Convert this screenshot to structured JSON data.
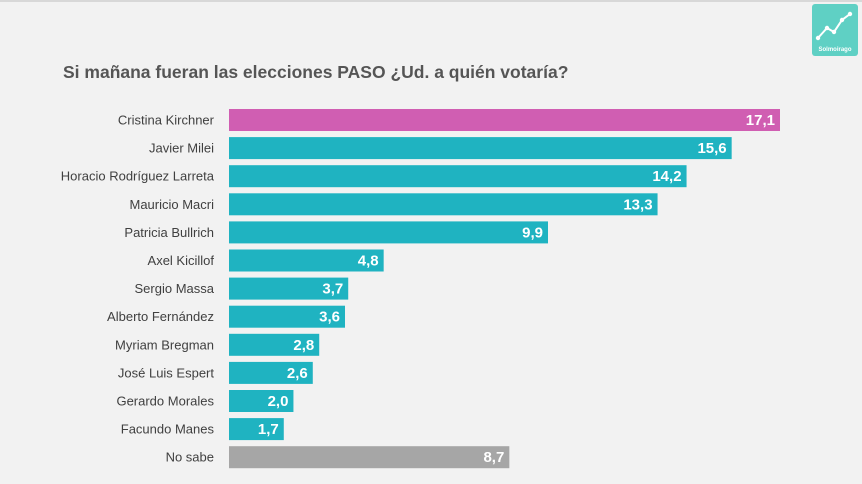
{
  "brand": {
    "logo_text": "Solmoirago",
    "logo_color": "#5fd0c4"
  },
  "chart_data": {
    "type": "bar",
    "orientation": "horizontal",
    "title": "Si mañana fueran las elecciones PASO ¿Ud. a quién votaría?",
    "categories": [
      "Cristina Kirchner",
      "Javier Milei",
      "Horacio Rodríguez Larreta",
      "Mauricio Macri",
      "Patricia Bullrich",
      "Axel Kicillof",
      "Sergio Massa",
      "Alberto Fernández",
      "Myriam Bregman",
      "José Luis Espert",
      "Gerardo Morales",
      "Facundo Manes",
      "No sabe"
    ],
    "values": [
      17.1,
      15.6,
      14.2,
      13.3,
      9.9,
      4.8,
      3.7,
      3.6,
      2.8,
      2.6,
      2.0,
      1.7,
      8.7
    ],
    "value_labels": [
      "17,1",
      "15,6",
      "14,2",
      "13,3",
      "9,9",
      "4,8",
      "3,7",
      "3,6",
      "2,8",
      "2,6",
      "2,0",
      "1,7",
      "8,7"
    ],
    "bar_colors": [
      "#d05eb2",
      "#1fb3c1",
      "#1fb3c1",
      "#1fb3c1",
      "#1fb3c1",
      "#1fb3c1",
      "#1fb3c1",
      "#1fb3c1",
      "#1fb3c1",
      "#1fb3c1",
      "#1fb3c1",
      "#1fb3c1",
      "#a6a6a6"
    ],
    "xlim": [
      0,
      17.1
    ],
    "grid": false,
    "legend": "none"
  }
}
